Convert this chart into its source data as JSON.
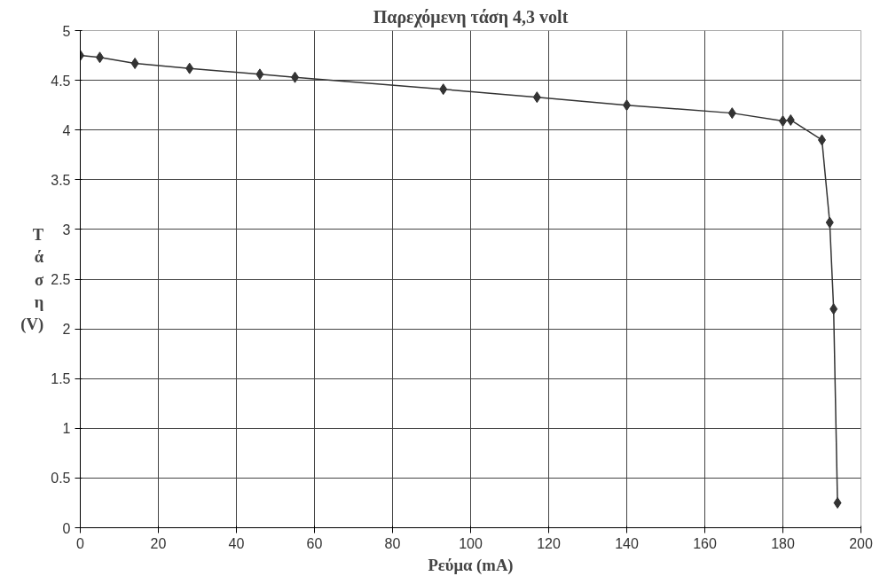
{
  "chart_data": {
    "type": "line",
    "title": "Παρεχόμενη τάση 4,3 volt",
    "xlabel": "Ρεύμα (mA)",
    "ylabel": "Τάση (V)",
    "x": [
      0,
      5,
      14,
      28,
      46,
      55,
      93,
      117,
      140,
      167,
      180,
      182,
      190,
      192,
      193,
      194
    ],
    "series": [
      {
        "color": "#333333",
        "values": [
          4.75,
          4.73,
          4.67,
          4.62,
          4.56,
          4.53,
          4.41,
          4.33,
          4.25,
          4.17,
          4.09,
          4.1,
          3.9,
          3.07,
          2.2,
          0.25
        ]
      }
    ],
    "xlim": [
      0,
      200
    ],
    "xticks": [
      0,
      20,
      40,
      60,
      80,
      100,
      120,
      140,
      160,
      180,
      200
    ],
    "ylim": [
      0,
      5
    ],
    "yticks": [
      0,
      0.5,
      1,
      1.5,
      2,
      2.5,
      3,
      3.5,
      4,
      4.5,
      5
    ],
    "grid": true,
    "marker": "diamond",
    "line_style": "solid"
  }
}
